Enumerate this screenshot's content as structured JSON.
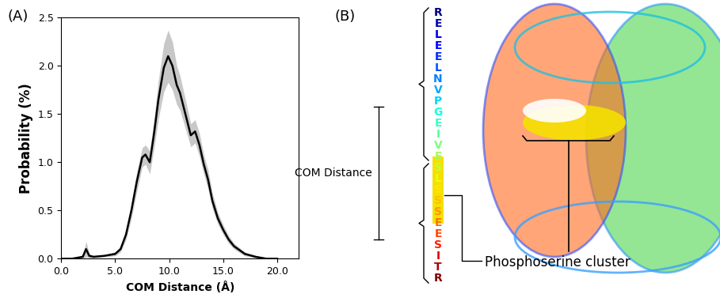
{
  "chart_data": {
    "type": "line",
    "panel_label": "(A)",
    "x_label": "COM Distance (Å)",
    "y_label": "Probability (%)",
    "x": [
      0,
      1,
      2,
      2.3,
      2.6,
      3,
      4,
      5,
      5.5,
      6,
      6.5,
      7,
      7.5,
      7.8,
      8.2,
      8.6,
      9,
      9.5,
      9.9,
      10.3,
      10.7,
      11,
      11.5,
      12,
      12.4,
      12.8,
      13.2,
      13.6,
      14,
      14.5,
      15,
      15.5,
      16,
      17,
      18,
      19,
      20
    ],
    "values": [
      0,
      0,
      0.02,
      0.1,
      0.03,
      0.02,
      0.03,
      0.05,
      0.1,
      0.25,
      0.5,
      0.8,
      1.05,
      1.08,
      1.0,
      1.3,
      1.65,
      1.98,
      2.1,
      2.0,
      1.8,
      1.72,
      1.5,
      1.28,
      1.32,
      1.18,
      0.98,
      0.82,
      0.6,
      0.42,
      0.3,
      0.2,
      0.13,
      0.05,
      0.02,
      0.0,
      0.0
    ],
    "error": [
      0,
      0,
      0.02,
      0.08,
      0.02,
      0.01,
      0.01,
      0.02,
      0.03,
      0.05,
      0.08,
      0.1,
      0.1,
      0.1,
      0.12,
      0.15,
      0.2,
      0.25,
      0.27,
      0.25,
      0.2,
      0.18,
      0.15,
      0.12,
      0.12,
      0.12,
      0.1,
      0.1,
      0.08,
      0.06,
      0.05,
      0.04,
      0.03,
      0.02,
      0.01,
      0,
      0
    ],
    "color": "#000000",
    "xlim": [
      0,
      22
    ],
    "xticks": [
      {
        "value": 0,
        "label": "0.0"
      },
      {
        "value": 5,
        "label": "5.0"
      },
      {
        "value": 10,
        "label": "10.0"
      },
      {
        "value": 15,
        "label": "15.0"
      },
      {
        "value": 20,
        "label": "20.0"
      }
    ],
    "ylim": [
      0,
      2.5
    ],
    "yticks": [
      {
        "value": 0,
        "label": "0.0"
      },
      {
        "value": 0.5,
        "label": "0.5"
      },
      {
        "value": 1.0,
        "label": "1.0"
      },
      {
        "value": 1.5,
        "label": "1.5"
      },
      {
        "value": 2.0,
        "label": "2.0"
      },
      {
        "value": 2.5,
        "label": "2.5"
      }
    ],
    "grid": false
  },
  "diagram": {
    "panel_label": "(B)",
    "sequence": [
      "R",
      "E",
      "L",
      "E",
      "E",
      "L",
      "N",
      "V",
      "P",
      "G",
      "E",
      "I",
      "V",
      "E",
      "S",
      "L",
      "S",
      "S",
      "S",
      "E",
      "E",
      "S",
      "I",
      "T",
      "R"
    ],
    "bracket_label": "COM Distance",
    "cluster_label": "Phosphoserine cluster"
  }
}
